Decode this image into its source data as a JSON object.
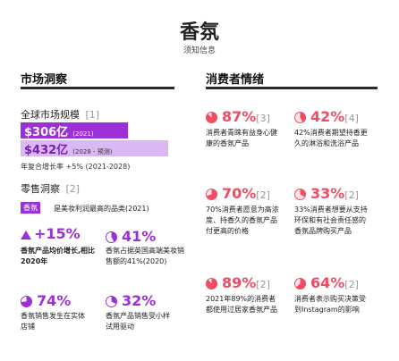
{
  "header": {
    "title": "香氛",
    "subtitle": "须知信息"
  },
  "market": {
    "heading": "市场洞察",
    "global_label": "全球市场规模",
    "global_ref": "[1]",
    "val2021": "$306亿",
    "val2021_year": "(2021)",
    "val2028": "$432亿",
    "val2028_year": "(2028 - 预测)",
    "cagr": "年复合增长率 +5% (2021-2028)",
    "retail_label": "零售洞察",
    "retail_ref": "[2]",
    "tag": "香氛",
    "tag_text": "是美妆利润最高的品类(2021)",
    "stat1_value": "+15%",
    "stat1_text": "香氛产品均价增长,相比2020年",
    "stat2_value": "41%",
    "stat2_text": "香氛占据英国高端美妆销售额的41%(2020)",
    "stat3_value": "74%",
    "stat3_text": "香氛销售发生在实体店铺",
    "stat4_value": "32%",
    "stat4_text": "香氛产品销售受小样试用驱动"
  },
  "consumer": {
    "heading": "消费者情绪",
    "items": [
      {
        "value": "87%",
        "ref": "[3]",
        "text": "消费者青睐有益身心健康的香氛产品",
        "percent": 87
      },
      {
        "value": "42%",
        "ref": "[4]",
        "text": "42%消费者期望持香更久的淋浴和洗浴产品",
        "percent": 42
      },
      {
        "value": "70%",
        "ref": "[2]",
        "text": "70%消费者愿意为高浓度、持香久的香氛产品付更高的价格",
        "percent": 70
      },
      {
        "value": "33%",
        "ref": "[2]",
        "text": "33%消费者想要从支持环保和有社会责任感的香氛品牌购买产品",
        "percent": 33
      },
      {
        "value": "89%",
        "ref": "[2]",
        "text": "2021年89%的消费者都使用过居家香氛产品",
        "percent": 89
      },
      {
        "value": "64%",
        "ref": "[2]",
        "text": "消费者表示购买决策受到Instagram的影响",
        "percent": 64
      }
    ]
  },
  "colors": {
    "accent": "#9b30d9",
    "accent_light": "#d9b8f3",
    "consumer": "#f04c63"
  }
}
